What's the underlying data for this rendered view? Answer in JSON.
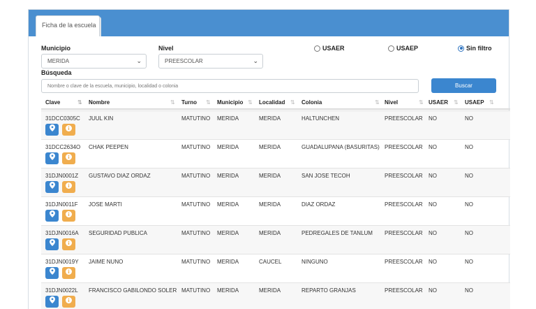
{
  "tab_label": "Ficha de la escuela",
  "filters": {
    "municipio_label": "Municipio",
    "municipio_value": "MERIDA",
    "nivel_label": "Nivel",
    "nivel_value": "PREESCOLAR",
    "radios": [
      {
        "label": "USAER",
        "selected": false
      },
      {
        "label": "USAEP",
        "selected": false
      },
      {
        "label": "Sin filtro",
        "selected": true
      }
    ],
    "busqueda_label": "Búsqueda",
    "search_placeholder": "Nombre o clave de la escuela, municipio, localidad o colonia",
    "search_button": "Buscar"
  },
  "icons": {
    "map": "map-marker-icon",
    "info": "info-icon",
    "caret": "chevron-down-icon",
    "sort": "sort-icon"
  },
  "colors": {
    "header": "#4a8fd0",
    "primary": "#3b86cf",
    "warning": "#f0ad4e"
  },
  "table": {
    "headers": [
      "Clave",
      "Nombre",
      "Turno",
      "Municipio",
      "Localidad",
      "Colonia",
      "Nivel",
      "USAER",
      "USAEP"
    ],
    "rows": [
      [
        "31DCC0305C",
        "JUUL KIN",
        "MATUTINO",
        "MERIDA",
        "MERIDA",
        "HALTUNCHEN",
        "PREESCOLAR",
        "NO",
        "NO"
      ],
      [
        "31DCC2634O",
        "CHAK PEEPEN",
        "MATUTINO",
        "MERIDA",
        "MERIDA",
        "GUADALUPANA (BASURITAS)",
        "PREESCOLAR",
        "NO",
        "NO"
      ],
      [
        "31DJN0001Z",
        "GUSTAVO DIAZ ORDAZ",
        "MATUTINO",
        "MERIDA",
        "MERIDA",
        "SAN JOSE TECOH",
        "PREESCOLAR",
        "NO",
        "NO"
      ],
      [
        "31DJN0011F",
        "JOSE MARTI",
        "MATUTINO",
        "MERIDA",
        "MERIDA",
        "DIAZ ORDAZ",
        "PREESCOLAR",
        "NO",
        "NO"
      ],
      [
        "31DJN0016A",
        "SEGURIDAD PUBLICA",
        "MATUTINO",
        "MERIDA",
        "MERIDA",
        "PEDREGALES DE TANLUM",
        "PREESCOLAR",
        "NO",
        "NO"
      ],
      [
        "31DJN0019Y",
        "JAIME NUNO",
        "MATUTINO",
        "MERIDA",
        "CAUCEL",
        "NINGUNO",
        "PREESCOLAR",
        "NO",
        "NO"
      ],
      [
        "31DJN0022L",
        "FRANCISCO GABILONDO SOLER",
        "MATUTINO",
        "MERIDA",
        "MERIDA",
        "REPARTO GRANJAS",
        "PREESCOLAR",
        "NO",
        "NO"
      ]
    ]
  }
}
